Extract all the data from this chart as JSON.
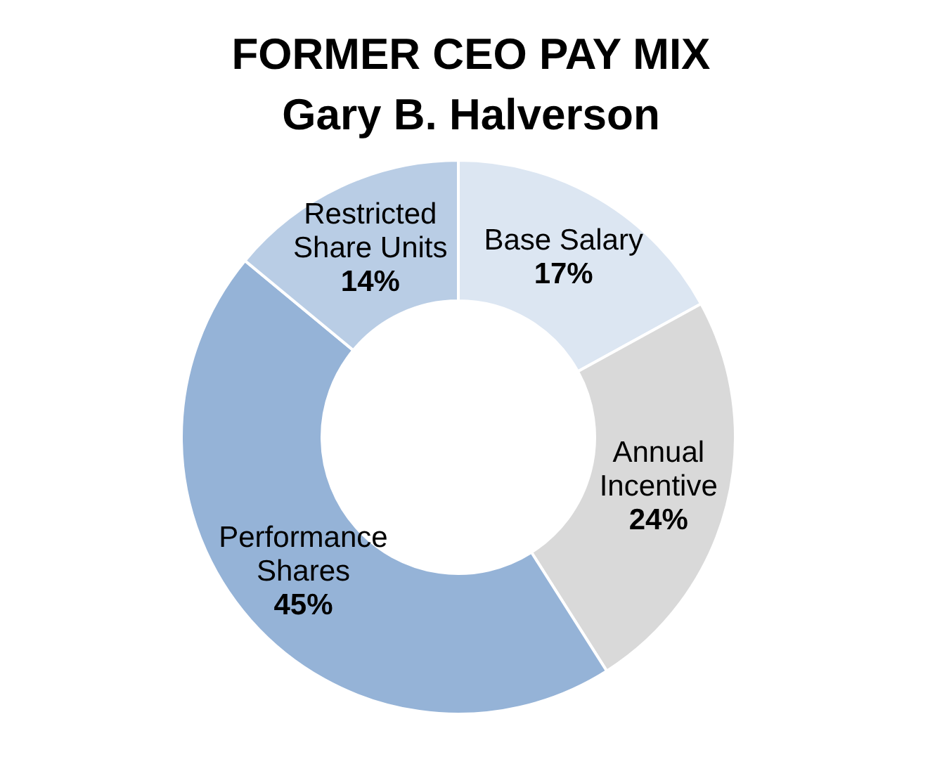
{
  "chart_data": {
    "type": "donut",
    "title": "FORMER CEO PAY MIX",
    "subtitle": "Gary B. Halverson",
    "categories": [
      "Base Salary",
      "Annual Incentive",
      "Performance Shares",
      "Restricted Share Units"
    ],
    "values": [
      17,
      24,
      45,
      14
    ],
    "colors": [
      "#dce6f2",
      "#d9d9d9",
      "#95b3d7",
      "#b9cde5"
    ],
    "value_labels": [
      "17%",
      "24%",
      "45%",
      "14%"
    ]
  }
}
